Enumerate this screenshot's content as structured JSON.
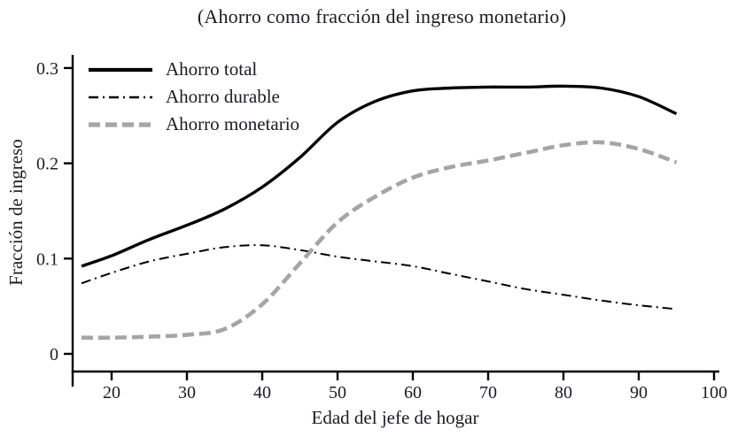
{
  "title": "(Ahorro como fracción del ingreso monetario)",
  "chart_data": {
    "type": "line",
    "title": "(Ahorro como fracción del ingreso monetario)",
    "xlabel": "Edad del jefe de hogar",
    "ylabel": "Fracción de ingreso",
    "xlim": [
      15,
      101
    ],
    "ylim": [
      0,
      0.316
    ],
    "grid": false,
    "legend_position": "top-left",
    "x_ticks": [
      20,
      30,
      40,
      50,
      60,
      70,
      80,
      90,
      100
    ],
    "y_ticks": [
      0,
      0.1,
      0.2,
      0.3
    ],
    "y_tick_labels": [
      "0",
      "0.1",
      "0.2",
      "0.3"
    ],
    "x": [
      16,
      20,
      25,
      30,
      35,
      40,
      45,
      50,
      55,
      60,
      65,
      70,
      75,
      80,
      85,
      90,
      95
    ],
    "series": [
      {
        "name": "Ahorro total",
        "style": "solid",
        "color": "#000000",
        "values": [
          0.092,
          0.103,
          0.12,
          0.135,
          0.152,
          0.175,
          0.206,
          0.243,
          0.265,
          0.276,
          0.279,
          0.28,
          0.28,
          0.281,
          0.279,
          0.27,
          0.252
        ]
      },
      {
        "name": "Ahorro durable",
        "style": "dash-dot",
        "color": "#000000",
        "values": [
          0.074,
          0.085,
          0.097,
          0.105,
          0.112,
          0.114,
          0.109,
          0.102,
          0.097,
          0.092,
          0.084,
          0.076,
          0.068,
          0.062,
          0.056,
          0.051,
          0.047
        ]
      },
      {
        "name": "Ahorro monetario",
        "style": "dashed",
        "color": "#a5a5a5",
        "values": [
          0.017,
          0.017,
          0.018,
          0.02,
          0.026,
          0.052,
          0.095,
          0.138,
          0.165,
          0.185,
          0.196,
          0.203,
          0.211,
          0.219,
          0.222,
          0.215,
          0.201
        ]
      }
    ],
    "axis_color": "#000000",
    "text_color": "#1b1b22"
  }
}
